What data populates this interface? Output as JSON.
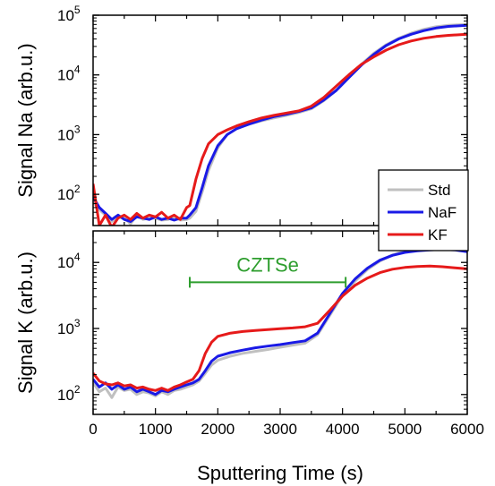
{
  "chart_data": [
    {
      "type": "line",
      "ylabel": "Signal Na (arb.u.)",
      "yscale": "log",
      "ylim": [
        30,
        100000
      ],
      "xlim": [
        0,
        6000
      ],
      "yticks": [
        {
          "value": 100,
          "base": "10",
          "exp": "2"
        },
        {
          "value": 1000,
          "base": "10",
          "exp": "3"
        },
        {
          "value": 10000,
          "base": "10",
          "exp": "4"
        },
        {
          "value": 100000,
          "base": "10",
          "exp": "5"
        }
      ],
      "series": [
        {
          "name": "Std",
          "color": "#c0c0c0",
          "x": [
            0,
            100,
            200,
            300,
            400,
            500,
            600,
            700,
            800,
            900,
            1000,
            1100,
            1200,
            1300,
            1400,
            1500,
            1550,
            1650,
            1750,
            1850,
            2000,
            2150,
            2300,
            2500,
            2700,
            2900,
            3100,
            3300,
            3500,
            3700,
            3900,
            4100,
            4300,
            4500,
            4700,
            4900,
            5100,
            5300,
            5500,
            5700,
            6000
          ],
          "y": [
            75,
            55,
            45,
            35,
            42,
            40,
            32,
            45,
            38,
            40,
            40,
            37,
            38,
            42,
            37,
            38,
            40,
            52,
            110,
            250,
            600,
            1000,
            1250,
            1500,
            1700,
            1900,
            2100,
            2350,
            2700,
            3700,
            5500,
            9000,
            15000,
            23000,
            32000,
            41000,
            50000,
            58000,
            64000,
            68000,
            70000
          ]
        },
        {
          "name": "NaF",
          "color": "#1a1ae6",
          "x": [
            0,
            100,
            200,
            300,
            400,
            500,
            600,
            700,
            800,
            900,
            1000,
            1100,
            1200,
            1300,
            1400,
            1500,
            1550,
            1650,
            1750,
            1850,
            2000,
            2150,
            2300,
            2500,
            2700,
            2900,
            3100,
            3300,
            3500,
            3700,
            3900,
            4100,
            4300,
            4500,
            4700,
            4900,
            5100,
            5300,
            5500,
            5700,
            6000
          ],
          "y": [
            90,
            60,
            48,
            38,
            45,
            38,
            35,
            42,
            40,
            38,
            42,
            38,
            40,
            37,
            40,
            40,
            45,
            60,
            130,
            300,
            650,
            1000,
            1250,
            1500,
            1750,
            2000,
            2200,
            2450,
            2800,
            3800,
            5500,
            9000,
            14500,
            22000,
            31000,
            40000,
            48000,
            55000,
            61000,
            65000,
            68000
          ]
        },
        {
          "name": "KF",
          "color": "#e61a1a",
          "x": [
            0,
            100,
            200,
            300,
            400,
            500,
            600,
            700,
            800,
            900,
            1000,
            1100,
            1200,
            1300,
            1400,
            1500,
            1550,
            1650,
            1750,
            1850,
            2000,
            2150,
            2300,
            2500,
            2700,
            2900,
            3100,
            3300,
            3500,
            3700,
            3900,
            4100,
            4300,
            4500,
            4700,
            4900,
            5100,
            5300,
            5500,
            5700,
            6000
          ],
          "y": [
            150,
            30,
            45,
            28,
            40,
            45,
            38,
            48,
            40,
            45,
            42,
            50,
            40,
            45,
            38,
            60,
            65,
            180,
            400,
            700,
            1000,
            1200,
            1400,
            1650,
            1900,
            2100,
            2300,
            2500,
            3000,
            4200,
            6500,
            10000,
            15000,
            20000,
            26000,
            32000,
            37000,
            41000,
            44000,
            46000,
            48000
          ]
        }
      ]
    },
    {
      "type": "line",
      "ylabel": "Signal K (arb.u.)",
      "xlabel": "Sputtering Time (s)",
      "yscale": "log",
      "ylim": [
        50,
        30000
      ],
      "xlim": [
        0,
        6000
      ],
      "xticks": [
        "0",
        "1000",
        "2000",
        "3000",
        "4000",
        "5000",
        "6000"
      ],
      "yticks": [
        {
          "value": 100,
          "base": "10",
          "exp": "2"
        },
        {
          "value": 1000,
          "base": "10",
          "exp": "3"
        },
        {
          "value": 10000,
          "base": "10",
          "exp": "4"
        }
      ],
      "annotation": {
        "text": "CZTSe",
        "x_start": 1550,
        "x_end": 4050,
        "y": 5000,
        "color": "#2e9e2e"
      },
      "series": [
        {
          "name": "Std",
          "color": "#c0c0c0",
          "x": [
            0,
            100,
            200,
            300,
            400,
            500,
            600,
            700,
            800,
            900,
            1000,
            1100,
            1200,
            1300,
            1400,
            1500,
            1600,
            1700,
            1800,
            1900,
            2000,
            2200,
            2400,
            2600,
            2800,
            3000,
            3200,
            3400,
            3600,
            3800,
            4000,
            4200,
            4400,
            4600,
            4800,
            5000,
            5200,
            5400,
            5600,
            5800,
            6000
          ],
          "y": [
            150,
            110,
            125,
            90,
            130,
            115,
            120,
            100,
            110,
            105,
            95,
            110,
            100,
            115,
            120,
            130,
            140,
            160,
            210,
            280,
            330,
            380,
            420,
            450,
            480,
            520,
            560,
            600,
            800,
            1600,
            3200,
            5200,
            7800,
            10500,
            13000,
            15000,
            16500,
            17500,
            18000,
            18500,
            19000
          ]
        },
        {
          "name": "NaF",
          "color": "#1a1ae6",
          "x": [
            0,
            100,
            200,
            300,
            400,
            500,
            600,
            700,
            800,
            900,
            1000,
            1100,
            1200,
            1300,
            1400,
            1500,
            1600,
            1700,
            1800,
            1900,
            2000,
            2200,
            2400,
            2600,
            2800,
            3000,
            3200,
            3400,
            3600,
            3800,
            4000,
            4200,
            4400,
            4600,
            4800,
            5000,
            5200,
            5400,
            5600,
            5800,
            6000
          ],
          "y": [
            170,
            130,
            150,
            120,
            140,
            120,
            130,
            110,
            120,
            110,
            100,
            115,
            110,
            120,
            130,
            140,
            150,
            170,
            230,
            320,
            380,
            430,
            470,
            510,
            540,
            570,
            610,
            650,
            850,
            1700,
            3400,
            5600,
            8200,
            10800,
            12800,
            14200,
            15000,
            15500,
            15800,
            15500,
            14500
          ]
        },
        {
          "name": "KF",
          "color": "#e61a1a",
          "x": [
            0,
            100,
            200,
            300,
            400,
            500,
            600,
            700,
            800,
            900,
            1000,
            1100,
            1200,
            1300,
            1400,
            1500,
            1600,
            1700,
            1800,
            1900,
            2000,
            2200,
            2400,
            2600,
            2800,
            3000,
            3200,
            3400,
            3600,
            3800,
            4000,
            4200,
            4400,
            4600,
            4800,
            5000,
            5200,
            5400,
            5600,
            5800,
            6000
          ],
          "y": [
            210,
            160,
            145,
            140,
            150,
            135,
            140,
            125,
            130,
            120,
            115,
            125,
            115,
            130,
            140,
            155,
            170,
            230,
            420,
            620,
            760,
            850,
            900,
            930,
            960,
            990,
            1020,
            1060,
            1200,
            1900,
            3100,
            4500,
            5800,
            7000,
            7900,
            8400,
            8700,
            8800,
            8600,
            8300,
            8000
          ]
        }
      ]
    }
  ],
  "legend": {
    "position": "right-middle",
    "entries": [
      "Std",
      "NaF",
      "KF"
    ]
  }
}
